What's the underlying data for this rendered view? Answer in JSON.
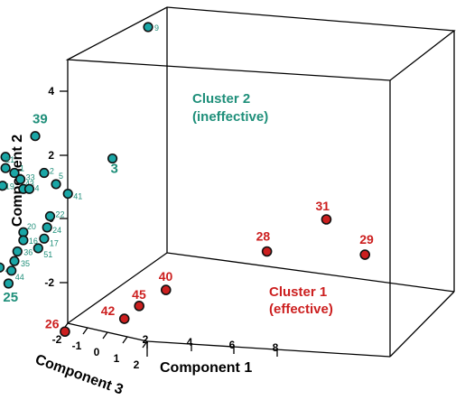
{
  "chart_data": {
    "type": "scatter",
    "axes": {
      "x": {
        "label": "Component 1",
        "ticks": [
          "2",
          "4",
          "6",
          "8"
        ]
      },
      "y": {
        "label": "Component 2",
        "ticks": [
          "-2",
          "0",
          "2",
          "4"
        ]
      },
      "z": {
        "label": "Component 3",
        "ticks": [
          "-2",
          "-1",
          "0",
          "1",
          "2"
        ]
      }
    },
    "clusters": [
      {
        "label_line1": "Cluster 2",
        "label_line2": "(ineffective)",
        "color": "#1aa6a6",
        "label_color": "#1f8f7a"
      },
      {
        "label_line1": "Cluster 1",
        "label_line2": "(effective)",
        "color": "#cc1f1f",
        "label_color": "#cc1f1f"
      }
    ],
    "points": [
      {
        "id": "9",
        "cluster": 2,
        "x": -2.4,
        "y": 6.0,
        "big": false
      },
      {
        "id": "14",
        "cluster": 2,
        "x": -7.8,
        "y": 3.3,
        "big": false
      },
      {
        "id": "39",
        "cluster": 2,
        "x": -6.2,
        "y": 2.6,
        "big": true
      },
      {
        "id": "3",
        "cluster": 2,
        "x": -3.6,
        "y": 1.9,
        "big": true
      },
      {
        "id": "37",
        "cluster": 2,
        "x": -7.2,
        "y": 1.95,
        "big": true
      },
      {
        "id": "21",
        "cluster": 2,
        "x": -7.2,
        "y": 1.6,
        "big": false
      },
      {
        "id": "1",
        "cluster": 2,
        "x": -6.9,
        "y": 1.45,
        "big": false
      },
      {
        "id": "2",
        "cluster": 2,
        "x": -5.9,
        "y": 1.45,
        "big": false
      },
      {
        "id": "46",
        "cluster": 2,
        "x": -7.6,
        "y": 1.35,
        "big": false
      },
      {
        "id": "33",
        "cluster": 2,
        "x": -6.7,
        "y": 1.25,
        "big": false
      },
      {
        "id": "23",
        "cluster": 2,
        "x": -7.9,
        "y": 1.05,
        "big": false
      },
      {
        "id": "19",
        "cluster": 2,
        "x": -7.3,
        "y": 1.05,
        "big": false
      },
      {
        "id": "43",
        "cluster": 2,
        "x": -6.6,
        "y": 0.95,
        "big": false
      },
      {
        "id": "4",
        "cluster": 2,
        "x": -6.4,
        "y": 0.95,
        "big": false
      },
      {
        "id": "5",
        "cluster": 2,
        "x": -5.5,
        "y": 1.1,
        "big": false
      },
      {
        "id": "41",
        "cluster": 2,
        "x": -5.1,
        "y": 0.8,
        "big": false
      },
      {
        "id": "32",
        "cluster": 2,
        "x": -8.1,
        "y": 0.8,
        "big": false
      },
      {
        "id": "13",
        "cluster": 2,
        "x": -8.5,
        "y": 0.6,
        "big": false
      },
      {
        "id": "6",
        "cluster": 2,
        "x": -7.7,
        "y": 0.65,
        "big": false
      },
      {
        "id": "10",
        "cluster": 2,
        "x": -7.9,
        "y": 0.35,
        "big": false
      },
      {
        "id": "11",
        "cluster": 2,
        "x": -7.6,
        "y": 0.3,
        "big": false
      },
      {
        "id": "52",
        "cluster": 2,
        "x": -8.6,
        "y": 0.25,
        "big": false
      },
      {
        "id": "34",
        "cluster": 2,
        "x": -8.3,
        "y": 0.05,
        "big": false
      },
      {
        "id": "22",
        "cluster": 2,
        "x": -5.7,
        "y": 0.1,
        "big": false
      },
      {
        "id": "8",
        "cluster": 2,
        "x": -8.8,
        "y": -0.15,
        "big": false
      },
      {
        "id": "12",
        "cluster": 2,
        "x": -8.0,
        "y": -0.4,
        "big": false
      },
      {
        "id": "24",
        "cluster": 2,
        "x": -5.8,
        "y": -0.25,
        "big": false
      },
      {
        "id": "20",
        "cluster": 2,
        "x": -6.6,
        "y": -0.4,
        "big": false
      },
      {
        "id": "16",
        "cluster": 2,
        "x": -6.6,
        "y": -0.65,
        "big": false
      },
      {
        "id": "17",
        "cluster": 2,
        "x": -5.9,
        "y": -0.6,
        "big": false
      },
      {
        "id": "51",
        "cluster": 2,
        "x": -6.1,
        "y": -0.9,
        "big": false
      },
      {
        "id": "30",
        "cluster": 2,
        "x": -8.7,
        "y": -0.8,
        "big": false
      },
      {
        "id": "7",
        "cluster": 2,
        "x": -8.3,
        "y": -1.1,
        "big": false
      },
      {
        "id": "27",
        "cluster": 2,
        "x": -8.6,
        "y": -1.3,
        "big": false
      },
      {
        "id": "36",
        "cluster": 2,
        "x": -6.8,
        "y": -1.0,
        "big": false
      },
      {
        "id": "35",
        "cluster": 2,
        "x": -6.9,
        "y": -1.3,
        "big": false
      },
      {
        "id": "48",
        "cluster": 2,
        "x": -8.1,
        "y": -1.5,
        "big": false
      },
      {
        "id": "49",
        "cluster": 2,
        "x": -7.4,
        "y": -1.5,
        "big": false
      },
      {
        "id": "44",
        "cluster": 2,
        "x": -7.0,
        "y": -1.6,
        "big": false
      },
      {
        "id": "47",
        "cluster": 2,
        "x": -7.9,
        "y": -1.7,
        "big": false
      },
      {
        "id": "25",
        "cluster": 2,
        "x": -7.1,
        "y": -2.0,
        "big": true
      },
      {
        "id": "38",
        "cluster": 2,
        "x": -8.3,
        "y": -2.4,
        "big": true
      },
      {
        "id": "50",
        "cluster": 2,
        "x": -9.2,
        "y": -2.4,
        "big": false
      },
      {
        "id": "31",
        "cluster": 1,
        "x": 3.6,
        "y": 0.0,
        "big": true
      },
      {
        "id": "28",
        "cluster": 1,
        "x": 1.6,
        "y": -1.0,
        "big": true
      },
      {
        "id": "29",
        "cluster": 1,
        "x": 4.9,
        "y": -1.1,
        "big": true
      },
      {
        "id": "40",
        "cluster": 1,
        "x": -1.8,
        "y": -2.2,
        "big": true
      },
      {
        "id": "45",
        "cluster": 1,
        "x": -2.7,
        "y": -2.7,
        "big": true
      },
      {
        "id": "42",
        "cluster": 1,
        "x": -3.2,
        "y": -3.1,
        "big": true
      },
      {
        "id": "26",
        "cluster": 1,
        "x": -5.2,
        "y": -3.5,
        "big": true
      }
    ]
  }
}
